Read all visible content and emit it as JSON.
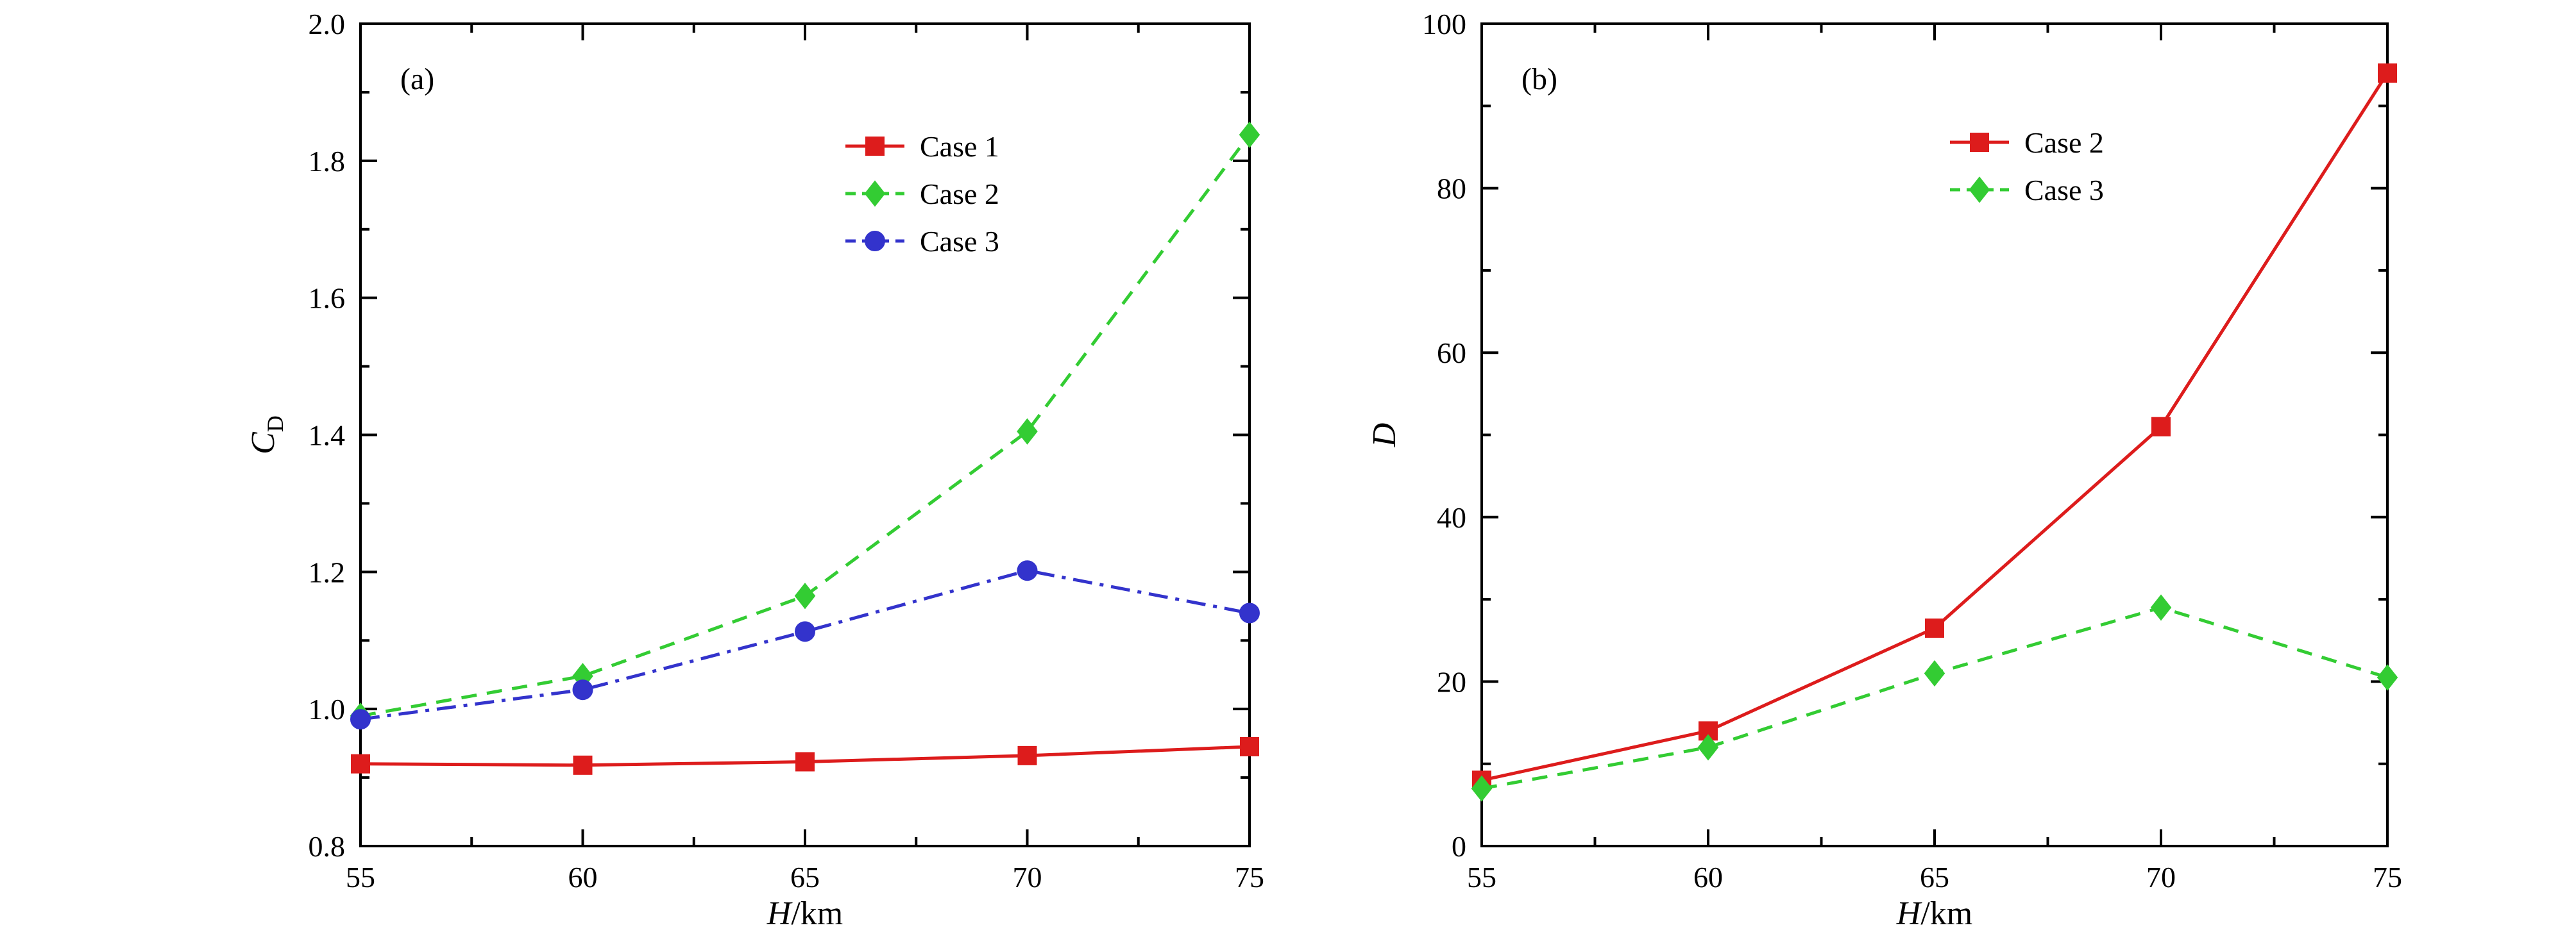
{
  "figure": {
    "background": "#ffffff",
    "panels": [
      {
        "panel_label": "(a)",
        "chart_data": {
          "type": "line",
          "x": [
            55,
            60,
            65,
            70,
            75
          ],
          "series": [
            {
              "name": "Case 1",
              "color": "#dd1c1c",
              "marker": "square",
              "line_style": "solid",
              "values": [
                0.92,
                0.918,
                0.923,
                0.932,
                0.945
              ]
            },
            {
              "name": "Case 2",
              "color": "#33cc33",
              "marker": "diamond",
              "line_style": "dashed",
              "values": [
                0.99,
                1.048,
                1.165,
                1.405,
                1.838
              ]
            },
            {
              "name": "Case 3",
              "color": "#3333cc",
              "marker": "circle",
              "line_style": "dashdot",
              "values": [
                0.985,
                1.028,
                1.113,
                1.202,
                1.14
              ]
            }
          ],
          "xlabel_parts": [
            {
              "t": "H",
              "style": "italic"
            },
            {
              "t": "/km",
              "style": "normal"
            }
          ],
          "ylabel_parts": [
            {
              "t": "C",
              "style": "italic"
            },
            {
              "t": "D",
              "style": "sub"
            }
          ],
          "xlim": [
            55,
            75
          ],
          "ylim": [
            0.8,
            2.0
          ],
          "xticks": [
            55,
            60,
            65,
            70,
            75
          ],
          "xtick_labels": [
            "55",
            "60",
            "65",
            "70",
            "75"
          ],
          "xminor": [
            57.5,
            62.5,
            67.5,
            72.5
          ],
          "yticks": [
            0.8,
            1.0,
            1.2,
            1.4,
            1.6,
            1.8,
            2.0
          ],
          "ytick_labels": [
            "0.8",
            "1.0",
            "1.2",
            "1.4",
            "1.6",
            "1.8",
            "2.0"
          ],
          "yminor": [
            0.9,
            1.1,
            1.3,
            1.5,
            1.7,
            1.9
          ],
          "legend_position": "upper-center",
          "grid": false
        }
      },
      {
        "panel_label": "(b)",
        "chart_data": {
          "type": "line",
          "x": [
            55,
            60,
            65,
            70,
            75
          ],
          "series": [
            {
              "name": "Case 2",
              "color": "#dd1c1c",
              "marker": "square",
              "line_style": "solid",
              "values": [
                8,
                14,
                26.5,
                51,
                94
              ]
            },
            {
              "name": "Case 3",
              "color": "#33cc33",
              "marker": "diamond",
              "line_style": "dashed",
              "values": [
                7,
                12,
                21,
                29,
                20.5
              ]
            }
          ],
          "xlabel_parts": [
            {
              "t": "H",
              "style": "italic"
            },
            {
              "t": "/km",
              "style": "normal"
            }
          ],
          "ylabel_parts": [
            {
              "t": "D",
              "style": "italic"
            }
          ],
          "xlim": [
            55,
            75
          ],
          "ylim": [
            0,
            100
          ],
          "xticks": [
            55,
            60,
            65,
            70,
            75
          ],
          "xtick_labels": [
            "55",
            "60",
            "65",
            "70",
            "75"
          ],
          "xminor": [
            57.5,
            62.5,
            67.5,
            72.5
          ],
          "yticks": [
            0,
            20,
            40,
            60,
            80,
            100
          ],
          "ytick_labels": [
            "0",
            "20",
            "40",
            "60",
            "80",
            "100"
          ],
          "yminor": [
            10,
            30,
            50,
            70,
            90
          ],
          "legend_position": "upper-center",
          "grid": false
        }
      }
    ]
  }
}
